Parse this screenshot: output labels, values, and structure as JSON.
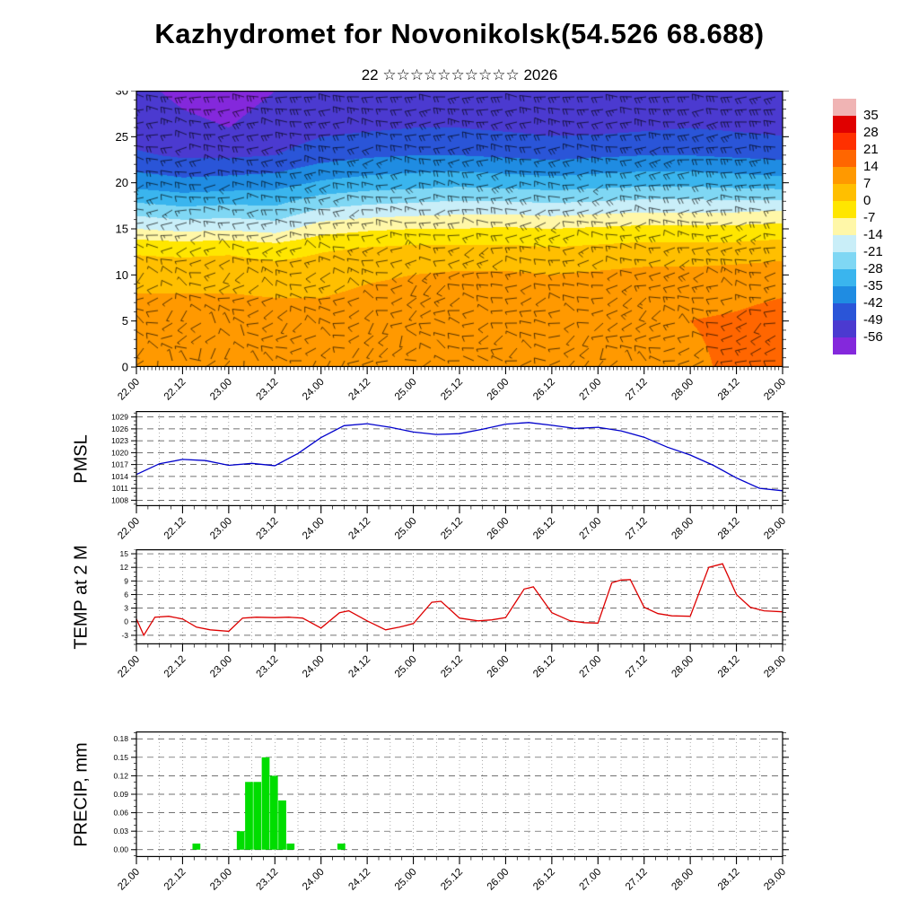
{
  "title": "Kazhydromet for Novonikolsk(54.526 68.688)",
  "subtitle": "22 ☆☆☆☆☆☆☆☆☆☆ 2026",
  "x_axis": {
    "range": [
      22,
      29
    ],
    "tick_positions": [
      22,
      22.5,
      23,
      23.5,
      24,
      24.5,
      25,
      25.5,
      26,
      26.5,
      27,
      27.5,
      28,
      28.5,
      29
    ],
    "tick_labels": [
      "22.00",
      "22.12",
      "23.00",
      "23.12",
      "24.00",
      "24.12",
      "25.00",
      "25.12",
      "26.00",
      "26.12",
      "27.00",
      "27.12",
      "28.00",
      "28.12",
      "29.00"
    ]
  },
  "chart_data": [
    {
      "type": "heatmap",
      "name": "wind-temperature-cross-section",
      "ylabel": "",
      "ylim": [
        0,
        30
      ],
      "yticks": [
        0,
        5,
        10,
        15,
        20,
        25,
        30
      ],
      "ytick_labels": [
        "0",
        "5",
        "10",
        "15",
        "20",
        "25",
        "30"
      ],
      "y_levels": [
        0,
        5,
        10,
        13,
        15,
        17,
        20,
        23,
        26,
        30
      ],
      "temperature_grid": [
        [
          9,
          9,
          9,
          10,
          9,
          9,
          10,
          11,
          11,
          10,
          11,
          12,
          13,
          15,
          16
        ],
        [
          10,
          10,
          10,
          10,
          10,
          11,
          12,
          13,
          13,
          11,
          12,
          13,
          14,
          15,
          17
        ],
        [
          5,
          5,
          5,
          4,
          4,
          6,
          7,
          8,
          8,
          7,
          8,
          9,
          9,
          10,
          11
        ],
        [
          -2,
          -3,
          -2,
          -4,
          -1,
          0,
          1,
          1,
          1,
          0,
          1,
          2,
          2,
          2,
          3
        ],
        [
          -14,
          -16,
          -15,
          -17,
          -10,
          -8,
          -7,
          -7,
          -6,
          -7,
          -6,
          -5,
          -5,
          -5,
          -4
        ],
        [
          -24,
          -26,
          -25,
          -26,
          -20,
          -18,
          -17,
          -16,
          -16,
          -17,
          -16,
          -15,
          -15,
          -15,
          -14
        ],
        [
          -38,
          -40,
          -39,
          -38,
          -34,
          -32,
          -31,
          -30,
          -31,
          -32,
          -31,
          -30,
          -30,
          -31,
          -32
        ],
        [
          -48,
          -50,
          -50,
          -49,
          -45,
          -43,
          -42,
          -42,
          -43,
          -44,
          -43,
          -42,
          -42,
          -43,
          -44
        ],
        [
          -53,
          -55,
          -56,
          -54,
          -51,
          -50,
          -49,
          -49,
          -50,
          -51,
          -51,
          -50,
          -49,
          -50,
          -51
        ],
        [
          -55,
          -57,
          -58,
          -56,
          -54,
          -53,
          -52,
          -52,
          -53,
          -54,
          -54,
          -53,
          -52,
          -53,
          -54
        ]
      ],
      "wind_u": [
        [
          5,
          4,
          3,
          5,
          6,
          5,
          4,
          6,
          7,
          6,
          5,
          7,
          8,
          9,
          10
        ],
        [
          8,
          7,
          6,
          8,
          9,
          8,
          7,
          9,
          10,
          9,
          8,
          10,
          11,
          12,
          12
        ],
        [
          10,
          9,
          10,
          12,
          12,
          11,
          10,
          12,
          13,
          12,
          11,
          13,
          14,
          15,
          15
        ],
        [
          12,
          11,
          12,
          14,
          15,
          13,
          12,
          14,
          15,
          14,
          13,
          15,
          16,
          17,
          17
        ],
        [
          14,
          13,
          14,
          16,
          17,
          15,
          14,
          16,
          17,
          16,
          15,
          17,
          18,
          19,
          19
        ],
        [
          16,
          15,
          16,
          18,
          19,
          17,
          16,
          18,
          19,
          18,
          17,
          19,
          20,
          21,
          21
        ],
        [
          18,
          17,
          18,
          20,
          21,
          19,
          18,
          20,
          21,
          20,
          19,
          21,
          22,
          23,
          23
        ],
        [
          20,
          19,
          20,
          22,
          23,
          21,
          20,
          22,
          23,
          22,
          21,
          23,
          24,
          25,
          25
        ],
        [
          22,
          21,
          22,
          24,
          25,
          23,
          22,
          24,
          25,
          24,
          23,
          25,
          26,
          27,
          27
        ],
        [
          24,
          23,
          24,
          26,
          27,
          25,
          24,
          26,
          27,
          26,
          25,
          27,
          28,
          29,
          29
        ]
      ],
      "wind_v": [
        [
          4,
          -6,
          8,
          -4,
          3,
          7,
          -5,
          5,
          -7,
          4,
          8,
          -4,
          3,
          6,
          -3
        ],
        [
          -5,
          7,
          -6,
          5,
          -4,
          6,
          8,
          -6,
          6,
          -5,
          7,
          5,
          -6,
          4,
          7
        ],
        [
          6,
          -5,
          7,
          -7,
          5,
          -6,
          7,
          6,
          -5,
          7,
          -6,
          6,
          5,
          -7,
          5
        ],
        [
          -7,
          6,
          -5,
          8,
          -6,
          7,
          -7,
          5,
          7,
          -6,
          5,
          -7,
          6,
          5,
          -6
        ],
        [
          8,
          -7,
          6,
          -5,
          7,
          -8,
          6,
          -6,
          5,
          8,
          -5,
          6,
          -7,
          5,
          6
        ],
        [
          -6,
          8,
          -7,
          6,
          -5,
          6,
          -8,
          7,
          -6,
          5,
          7,
          -5,
          6,
          -6,
          5
        ],
        [
          7,
          -6,
          5,
          -8,
          6,
          -5,
          7,
          -7,
          8,
          -6,
          5,
          6,
          -5,
          7,
          -5
        ],
        [
          -8,
          5,
          -6,
          7,
          -7,
          8,
          -5,
          6,
          -8,
          7,
          -6,
          5,
          7,
          -5,
          6
        ],
        [
          5,
          -7,
          8,
          -6,
          5,
          -7,
          6,
          -5,
          7,
          -8,
          6,
          -6,
          5,
          6,
          -7
        ],
        [
          -6,
          6,
          -8,
          5,
          -6,
          5,
          -6,
          8,
          -5,
          6,
          -7,
          7,
          -6,
          5,
          5
        ]
      ],
      "colorbar_values": [
        35,
        28,
        21,
        14,
        7,
        0,
        -7,
        -14,
        -21,
        -28,
        -35,
        -42,
        -49,
        -56
      ],
      "colorbar_colors": [
        "#f0b4b4",
        "#e00000",
        "#ff3000",
        "#ff6600",
        "#ff9900",
        "#ffbf00",
        "#ffe600",
        "#fff7a8",
        "#c9eef8",
        "#7fd7f4",
        "#3ab5ee",
        "#1f8ce2",
        "#2a55d8",
        "#4b3ad0",
        "#8428dc"
      ]
    },
    {
      "type": "line",
      "name": "pmsl",
      "ylabel": "PMSL",
      "color": "#0000cc",
      "ylim": [
        1006.5,
        1030.5
      ],
      "yminor": 1,
      "yticks": [
        1008,
        1011,
        1014,
        1017,
        1020,
        1023,
        1026,
        1029
      ],
      "ytick_labels": [
        "1008",
        "1011",
        "1014",
        "1017",
        "1020",
        "1023",
        "1026",
        "1029"
      ],
      "points": [
        [
          22.0,
          1014.5
        ],
        [
          22.25,
          1017.2
        ],
        [
          22.5,
          1018.3
        ],
        [
          22.75,
          1018.0
        ],
        [
          23.0,
          1016.8
        ],
        [
          23.25,
          1017.3
        ],
        [
          23.5,
          1016.7
        ],
        [
          23.75,
          1019.8
        ],
        [
          24.0,
          1023.8
        ],
        [
          24.25,
          1026.8
        ],
        [
          24.5,
          1027.3
        ],
        [
          24.75,
          1026.4
        ],
        [
          25.0,
          1025.2
        ],
        [
          25.25,
          1024.6
        ],
        [
          25.5,
          1024.8
        ],
        [
          25.75,
          1025.9
        ],
        [
          26.0,
          1027.2
        ],
        [
          26.25,
          1027.6
        ],
        [
          26.5,
          1026.9
        ],
        [
          26.75,
          1026.1
        ],
        [
          27.0,
          1026.4
        ],
        [
          27.25,
          1025.5
        ],
        [
          27.5,
          1023.9
        ],
        [
          27.75,
          1021.4
        ],
        [
          28.0,
          1019.4
        ],
        [
          28.25,
          1016.8
        ],
        [
          28.5,
          1013.6
        ],
        [
          28.75,
          1011.0
        ],
        [
          29.0,
          1010.4
        ]
      ]
    },
    {
      "type": "line",
      "name": "temp2m",
      "ylabel": "TEMP at 2 M",
      "color": "#dd0000",
      "ylim": [
        -5,
        16
      ],
      "yminor": 1,
      "yticks": [
        -3,
        0,
        3,
        6,
        9,
        12,
        15
      ],
      "ytick_labels": [
        "-3",
        "0",
        "3",
        "6",
        "9",
        "12",
        "15"
      ],
      "points": [
        [
          22.0,
          0.6
        ],
        [
          22.08,
          -3.0
        ],
        [
          22.2,
          1.0
        ],
        [
          22.35,
          1.2
        ],
        [
          22.5,
          0.6
        ],
        [
          22.65,
          -1.2
        ],
        [
          22.8,
          -1.8
        ],
        [
          23.0,
          -2.1
        ],
        [
          23.15,
          0.8
        ],
        [
          23.3,
          1.0
        ],
        [
          23.5,
          0.9
        ],
        [
          23.65,
          1.0
        ],
        [
          23.8,
          0.8
        ],
        [
          24.0,
          -1.4
        ],
        [
          24.2,
          2.0
        ],
        [
          24.3,
          2.4
        ],
        [
          24.5,
          0.2
        ],
        [
          24.7,
          -1.8
        ],
        [
          24.85,
          -1.2
        ],
        [
          25.0,
          -0.4
        ],
        [
          25.2,
          4.3
        ],
        [
          25.3,
          4.5
        ],
        [
          25.5,
          0.8
        ],
        [
          25.7,
          0.2
        ],
        [
          25.85,
          0.4
        ],
        [
          26.0,
          0.9
        ],
        [
          26.2,
          7.2
        ],
        [
          26.3,
          7.7
        ],
        [
          26.5,
          2.0
        ],
        [
          26.7,
          0.2
        ],
        [
          26.85,
          -0.2
        ],
        [
          27.0,
          -0.3
        ],
        [
          27.15,
          8.6
        ],
        [
          27.25,
          9.2
        ],
        [
          27.35,
          9.3
        ],
        [
          27.5,
          3.2
        ],
        [
          27.65,
          1.8
        ],
        [
          27.8,
          1.3
        ],
        [
          28.0,
          1.2
        ],
        [
          28.2,
          12.0
        ],
        [
          28.35,
          12.8
        ],
        [
          28.5,
          6.0
        ],
        [
          28.65,
          3.2
        ],
        [
          28.8,
          2.4
        ],
        [
          29.0,
          2.2
        ]
      ]
    },
    {
      "type": "bar",
      "name": "precip",
      "ylabel": "PRECIP, mm",
      "color": "#00dd00",
      "ylim": [
        -0.012,
        0.192
      ],
      "yminor": 0.01,
      "bar_width_days": 0.085,
      "yticks": [
        0,
        0.03,
        0.06,
        0.09,
        0.12,
        0.15,
        0.18
      ],
      "ytick_labels": [
        "0.00",
        "0.03",
        "0.06",
        "0.09",
        "0.12",
        "0.15",
        "0.18"
      ],
      "points": [
        [
          22.65,
          0.01
        ],
        [
          23.13,
          0.03
        ],
        [
          23.22,
          0.11
        ],
        [
          23.31,
          0.11
        ],
        [
          23.4,
          0.15
        ],
        [
          23.49,
          0.12
        ],
        [
          23.58,
          0.08
        ],
        [
          23.67,
          0.01
        ],
        [
          24.22,
          0.01
        ]
      ]
    }
  ]
}
